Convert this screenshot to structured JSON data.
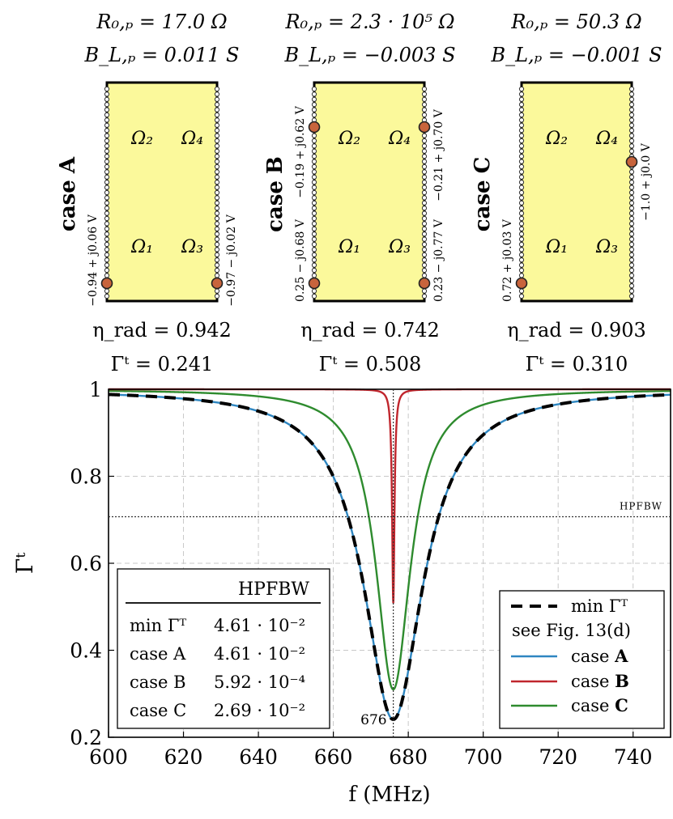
{
  "cases": [
    {
      "label": "case",
      "letter": "A",
      "r0": "R₀,ₚ = 17.0 Ω",
      "bl": "B_L,ₚ = 0.011 S",
      "eta": "η_rad = 0.942",
      "gamma": "Γᵗ = 0.241",
      "ports": [
        {
          "region": "Ω₁",
          "voltage": "−0.94 + j0.06 V",
          "side": "left",
          "position": "bottom"
        },
        {
          "region": "Ω₃",
          "voltage": "−0.97 − j0.02 V",
          "side": "right",
          "position": "bottom"
        }
      ]
    },
    {
      "label": "case",
      "letter": "B",
      "r0": "R₀,ₚ = 2.3 · 10⁵ Ω",
      "bl": "B_L,ₚ = −0.003 S",
      "eta": "η_rad = 0.742",
      "gamma": "Γᵗ = 0.508",
      "ports": [
        {
          "region": "Ω₂",
          "voltage": "−0.19 + j0.62 V",
          "side": "left",
          "position": "top"
        },
        {
          "region": "Ω₄",
          "voltage": "−0.21 + j0.70 V",
          "side": "right",
          "position": "top"
        },
        {
          "region": "Ω₁",
          "voltage": "0.25 − j0.68 V",
          "side": "left",
          "position": "bottom"
        },
        {
          "region": "Ω₃",
          "voltage": "0.23 − j0.77 V",
          "side": "right",
          "position": "bottom"
        }
      ]
    },
    {
      "label": "case",
      "letter": "C",
      "r0": "R₀,ₚ = 50.3 Ω",
      "bl": "B_L,ₚ = −0.001 S",
      "eta": "η_rad = 0.903",
      "gamma": "Γᵗ = 0.310",
      "ports": [
        {
          "region": "Ω₄",
          "voltage": "−1.0 + j0.0 V",
          "side": "right",
          "position": "mid"
        },
        {
          "region": "Ω₁",
          "voltage": "0.72 + j0.03 V",
          "side": "left",
          "position": "bottom"
        }
      ]
    }
  ],
  "regions": {
    "r1": "Ω₁",
    "r2": "Ω₂",
    "r3": "Ω₃",
    "r4": "Ω₄"
  },
  "colors": {
    "patch_fill": "#fbf99b",
    "port": "#c8643c",
    "case_A": "#2e86c1",
    "case_B": "#c0262d",
    "case_C": "#2e8b2e",
    "min": "#000000",
    "grid": "#c8c8c8"
  },
  "chart_data": {
    "type": "line",
    "xlabel": "f (MHz)",
    "ylabel": "Γᵗ",
    "xlim": [
      600,
      750
    ],
    "ylim": [
      0.2,
      1.0
    ],
    "xticks": [
      600,
      620,
      640,
      660,
      680,
      700,
      720,
      740
    ],
    "yticks": [
      "0.2",
      "0.4",
      "0.6",
      "0.8",
      "1"
    ],
    "grid": true,
    "hpfbw_line": {
      "y": 0.707,
      "label": "HPFBW"
    },
    "marker": {
      "x": 676,
      "label": "676"
    },
    "series": [
      {
        "name": "min Γᵀ",
        "style": "dashed",
        "color": "#000000",
        "f0": 676,
        "min": 0.241,
        "halfwidth": 9.6
      },
      {
        "name": "case A",
        "style": "solid",
        "color": "#2e86c1",
        "f0": 676,
        "min": 0.241,
        "halfwidth": 9.6
      },
      {
        "name": "case B",
        "style": "solid",
        "color": "#c0262d",
        "f0": 676,
        "min": 0.508,
        "halfwidth": 0.38
      },
      {
        "name": "case C",
        "style": "solid",
        "color": "#2e8b2e",
        "f0": 676,
        "min": 0.31,
        "halfwidth": 5.6
      }
    ],
    "legend": {
      "placement": "bottom-right",
      "entries": [
        {
          "label": "min Γᵀ",
          "bold": ""
        },
        {
          "label": "see Fig. 13(d)",
          "bold": ""
        },
        {
          "label": "case ",
          "bold": "A"
        },
        {
          "label": "case ",
          "bold": "B"
        },
        {
          "label": "case ",
          "bold": "C"
        }
      ]
    },
    "table": {
      "placement": "bottom-left",
      "header": "HPFBW",
      "rows": [
        {
          "name": "min Γᵀ",
          "value": "4.61 · 10⁻²"
        },
        {
          "name": "case A",
          "value": "4.61 · 10⁻²"
        },
        {
          "name": "case B",
          "value": "5.92 · 10⁻⁴"
        },
        {
          "name": "case C",
          "value": "2.69 · 10⁻²"
        }
      ]
    }
  }
}
